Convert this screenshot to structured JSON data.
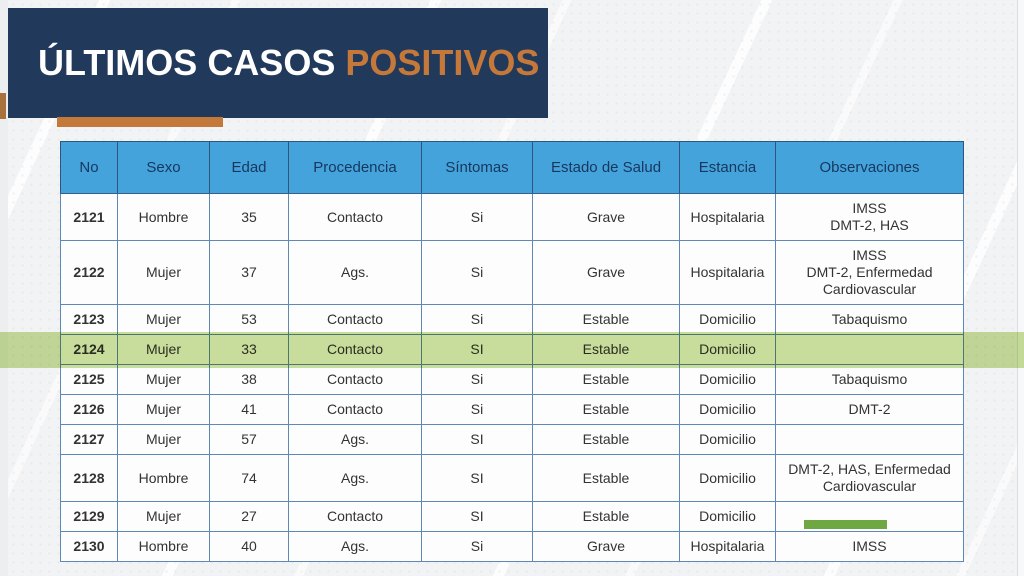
{
  "slide": {
    "title": {
      "part1": "ÚLTIMOS CASOS",
      "part2": "POSITIVOS"
    }
  },
  "colors": {
    "navy_box": "#21395a",
    "title_white": "#ffffff",
    "title_orange": "#c4783a",
    "accent_bar_orange": "#c4783a",
    "edge_sliver_brown": "#a9713e",
    "header_blue": "#45a3db",
    "header_text_navy": "#17375e",
    "grid_border_blue": "#5d89b4",
    "highlight_band_green": "#cfe3ab",
    "marker_bar_green": "#6fa742"
  },
  "table": {
    "columns": [
      {
        "key": "no",
        "label": "No"
      },
      {
        "key": "sexo",
        "label": "Sexo"
      },
      {
        "key": "edad",
        "label": "Edad"
      },
      {
        "key": "procedencia",
        "label": "Procedencia"
      },
      {
        "key": "sintomas",
        "label": "Síntomas"
      },
      {
        "key": "estado",
        "label": "Estado de Salud"
      },
      {
        "key": "estancia",
        "label": "Estancia"
      },
      {
        "key": "observaciones",
        "label": "Observaciones"
      }
    ],
    "rows": [
      {
        "no": "2121",
        "sexo": "Hombre",
        "edad": "35",
        "procedencia": "Contacto",
        "sintomas": "Si",
        "estado": "Grave",
        "estancia": "Hospitalaria",
        "observaciones": [
          "IMSS",
          "DMT-2, HAS"
        ],
        "highlight": false,
        "marker": null
      },
      {
        "no": "2122",
        "sexo": "Mujer",
        "edad": "37",
        "procedencia": "Ags.",
        "sintomas": "Si",
        "estado": "Grave",
        "estancia": "Hospitalaria",
        "observaciones": [
          "IMSS",
          "DMT-2, Enfermedad",
          "Cardiovascular"
        ],
        "highlight": false,
        "marker": null
      },
      {
        "no": "2123",
        "sexo": "Mujer",
        "edad": "53",
        "procedencia": "Contacto",
        "sintomas": "Si",
        "estado": "Estable",
        "estancia": "Domicilio",
        "observaciones": [
          "Tabaquismo"
        ],
        "highlight": false,
        "marker": null
      },
      {
        "no": "2124",
        "sexo": "Mujer",
        "edad": "33",
        "procedencia": "Contacto",
        "sintomas": "SI",
        "estado": "Estable",
        "estancia": "Domicilio",
        "observaciones": [],
        "highlight": true,
        "marker": null
      },
      {
        "no": "2125",
        "sexo": "Mujer",
        "edad": "38",
        "procedencia": "Contacto",
        "sintomas": "Si",
        "estado": "Estable",
        "estancia": "Domicilio",
        "observaciones": [
          "Tabaquismo"
        ],
        "highlight": false,
        "marker": null
      },
      {
        "no": "2126",
        "sexo": "Mujer",
        "edad": "41",
        "procedencia": "Contacto",
        "sintomas": "Si",
        "estado": "Estable",
        "estancia": "Domicilio",
        "observaciones": [
          "DMT-2"
        ],
        "highlight": false,
        "marker": null
      },
      {
        "no": "2127",
        "sexo": "Mujer",
        "edad": "57",
        "procedencia": "Ags.",
        "sintomas": "SI",
        "estado": "Estable",
        "estancia": "Domicilio",
        "observaciones": [],
        "highlight": false,
        "marker": null
      },
      {
        "no": "2128",
        "sexo": "Hombre",
        "edad": "74",
        "procedencia": "Ags.",
        "sintomas": "SI",
        "estado": "Estable",
        "estancia": "Domicilio",
        "observaciones": [
          "DMT-2, HAS, Enfermedad",
          "Cardiovascular"
        ],
        "highlight": false,
        "marker": null
      },
      {
        "no": "2129",
        "sexo": "Mujer",
        "edad": "27",
        "procedencia": "Contacto",
        "sintomas": "SI",
        "estado": "Estable",
        "estancia": "Domicilio",
        "observaciones": [],
        "highlight": false,
        "marker": "green-bar"
      },
      {
        "no": "2130",
        "sexo": "Hombre",
        "edad": "40",
        "procedencia": "Ags.",
        "sintomas": "Si",
        "estado": "Grave",
        "estancia": "Hospitalaria",
        "observaciones": [
          "IMSS"
        ],
        "highlight": false,
        "marker": null
      }
    ]
  }
}
